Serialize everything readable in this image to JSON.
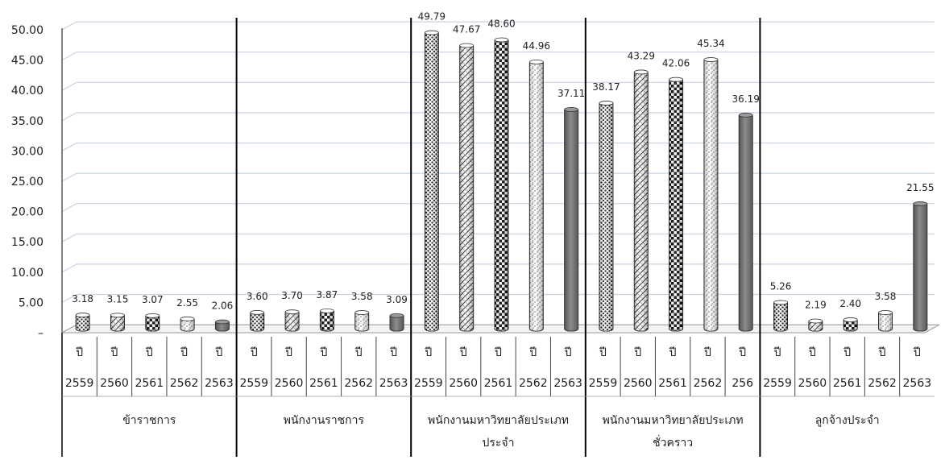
{
  "chart_data": {
    "type": "bar",
    "ylim": [
      0,
      50
    ],
    "y_ticks": [
      0,
      5,
      10,
      15,
      20,
      25,
      30,
      35,
      40,
      45,
      50
    ],
    "y_tick_labels": [
      "–",
      "5.00",
      "10.00",
      "15.00",
      "20.00",
      "25.00",
      "30.00",
      "35.00",
      "40.00",
      "45.00",
      "50.00"
    ],
    "grid": true,
    "year_prefix": "ปี",
    "groups": [
      {
        "label": [
          "ข้าราชการ"
        ],
        "bars": [
          {
            "year": "2559",
            "value": 3.18,
            "value_label": "3.18"
          },
          {
            "year": "2560",
            "value": 3.15,
            "value_label": "3.15"
          },
          {
            "year": "2561",
            "value": 3.07,
            "value_label": "3.07"
          },
          {
            "year": "2562",
            "value": 2.55,
            "value_label": "2.55"
          },
          {
            "year": "2563",
            "value": 2.06,
            "value_label": "2.06"
          }
        ]
      },
      {
        "label": [
          "พนักงานราชการ"
        ],
        "bars": [
          {
            "year": "2559",
            "value": 3.6,
            "value_label": "3.60"
          },
          {
            "year": "2560",
            "value": 3.7,
            "value_label": "3.70"
          },
          {
            "year": "2561",
            "value": 3.87,
            "value_label": "3.87"
          },
          {
            "year": "2562",
            "value": 3.58,
            "value_label": "3.58"
          },
          {
            "year": "2563",
            "value": 3.09,
            "value_label": "3.09"
          }
        ]
      },
      {
        "label": [
          "พนักงานมหาวิทยาลัยประเภท",
          "ประจำ"
        ],
        "bars": [
          {
            "year": "2559",
            "value": 49.79,
            "value_label": "49.79"
          },
          {
            "year": "2560",
            "value": 47.67,
            "value_label": "47.67"
          },
          {
            "year": "2561",
            "value": 48.6,
            "value_label": "48.60"
          },
          {
            "year": "2562",
            "value": 44.96,
            "value_label": "44.96"
          },
          {
            "year": "2563",
            "value": 37.11,
            "value_label": "37.11"
          }
        ]
      },
      {
        "label": [
          "พนักงานมหาวิทยาลัยประเภท",
          "ชั่วคราว"
        ],
        "bars": [
          {
            "year": "2559",
            "value": 38.17,
            "value_label": "38.17"
          },
          {
            "year": "2560",
            "value": 43.29,
            "value_label": "43.29"
          },
          {
            "year": "2561",
            "value": 42.06,
            "value_label": "42.06"
          },
          {
            "year": "2562",
            "value": 45.34,
            "value_label": "45.34"
          },
          {
            "year": "256",
            "value": 36.19,
            "value_label": "36.19"
          }
        ]
      },
      {
        "label": [
          "ลูกจ้างประจำ"
        ],
        "bars": [
          {
            "year": "2559",
            "value": 5.26,
            "value_label": "5.26"
          },
          {
            "year": "2560",
            "value": 2.19,
            "value_label": "2.19"
          },
          {
            "year": "2561",
            "value": 2.4,
            "value_label": "2.40"
          },
          {
            "year": "2562",
            "value": 3.58,
            "value_label": "3.58"
          },
          {
            "year": "2563",
            "value": 21.55,
            "value_label": "21.55"
          }
        ]
      }
    ],
    "patterns": [
      "pat-dots",
      "pat-diag",
      "pat-check",
      "pat-speck",
      "solid"
    ],
    "colors": {
      "bar_fill": "#ffffff",
      "bar_ink": "#222222",
      "solid": "#6e6e6e",
      "grid": "#c9d3e2",
      "axis": "#333333",
      "divider": "#000000"
    }
  }
}
